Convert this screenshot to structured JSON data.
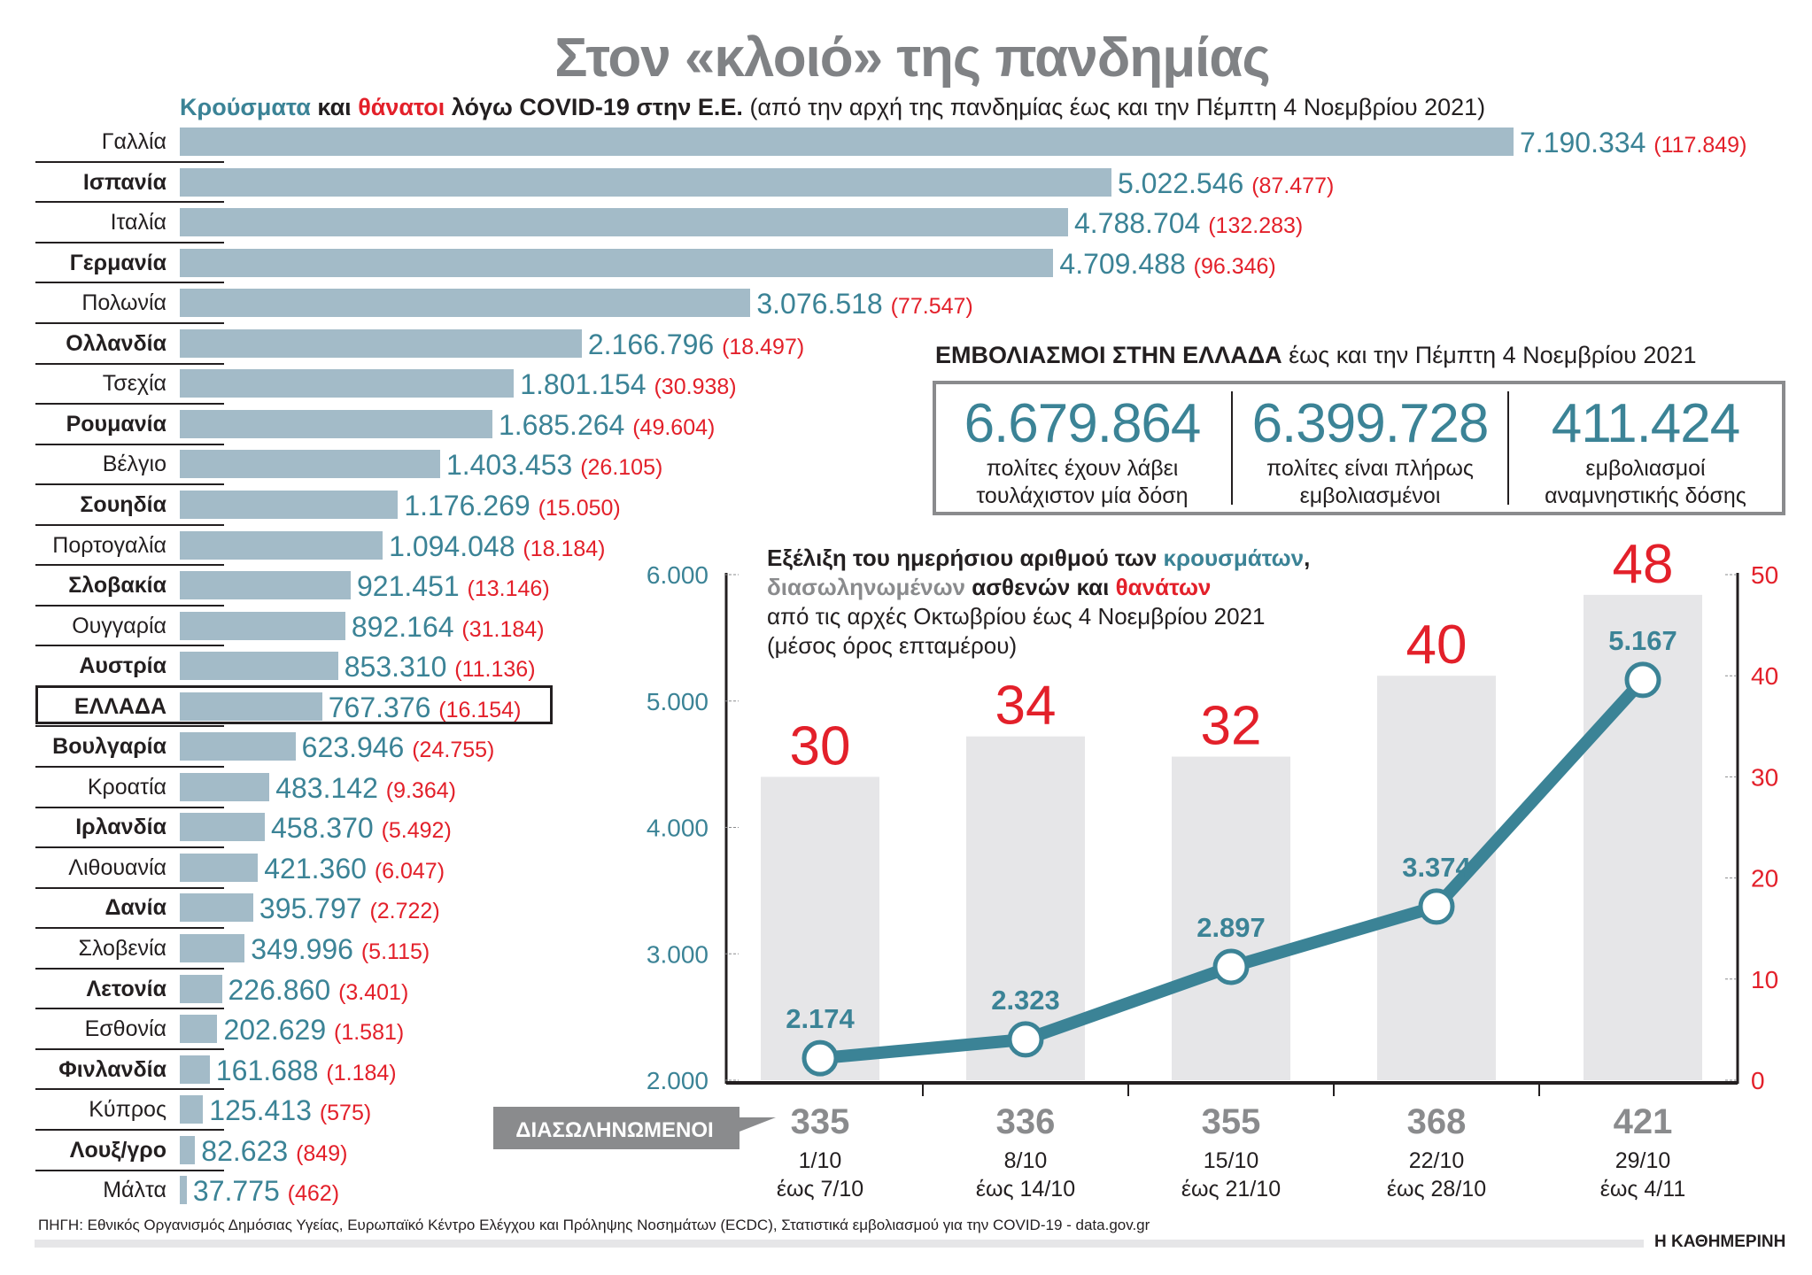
{
  "title": "Στον «κλοιό» της πανδημίας",
  "subtitle": {
    "cases_word": "Κρούσματα",
    "and_word": "και",
    "deaths_word": "θάνατοι",
    "rest_bold": "λόγω COVID-19 στην Ε.Ε.",
    "rest_note": "(από την αρχή της πανδημίας έως και την Πέμπτη 4 Νοεμβρίου 2021)"
  },
  "colors": {
    "cases": "#3b8396",
    "deaths": "#e3202a",
    "bars": "#a3bbc8",
    "hospitalized": "#8a8b8d",
    "death_bars": "#e6e6e8"
  },
  "chart_data": [
    {
      "type": "bar",
      "orientation": "horizontal",
      "categories": [
        "Γαλλία",
        "Ισπανία",
        "Ιταλία",
        "Γερμανία",
        "Πολωνία",
        "Ολλανδία",
        "Τσεχία",
        "Ρουμανία",
        "Βέλγιο",
        "Σουηδία",
        "Πορτογαλία",
        "Σλοβακία",
        "Ουγγαρία",
        "Αυστρία",
        "ΕΛΛΑΔΑ",
        "Βουλγαρία",
        "Κροατία",
        "Ιρλανδία",
        "Λιθουανία",
        "Δανία",
        "Σλοβενία",
        "Λετονία",
        "Εσθονία",
        "Φινλανδία",
        "Κύπρος",
        "Λουξ/γρο",
        "Μάλτα"
      ],
      "series": [
        {
          "name": "Κρούσματα",
          "values": [
            7190334,
            5022546,
            4788704,
            4709488,
            3076518,
            2166796,
            1801154,
            1685264,
            1403453,
            1176269,
            1094048,
            921451,
            892164,
            853310,
            767376,
            623946,
            483142,
            458370,
            421360,
            395797,
            349996,
            226860,
            202629,
            161688,
            125413,
            82623,
            37775
          ],
          "labels": [
            "7.190.334",
            "5.022.546",
            "4.788.704",
            "4.709.488",
            "3.076.518",
            "2.166.796",
            "1.801.154",
            "1.685.264",
            "1.403.453",
            "1.176.269",
            "1.094.048",
            "921.451",
            "892.164",
            "853.310",
            "767.376",
            "623.946",
            "483.142",
            "458.370",
            "421.360",
            "395.797",
            "349.996",
            "226.860",
            "202.629",
            "161.688",
            "125.413",
            "82.623",
            "37.775"
          ]
        },
        {
          "name": "θάνατοι",
          "values": [
            117849,
            87477,
            132283,
            96346,
            77547,
            18497,
            30938,
            49604,
            26105,
            15050,
            18184,
            13146,
            31184,
            11136,
            16154,
            24755,
            9364,
            5492,
            6047,
            2722,
            5115,
            3401,
            1581,
            1184,
            575,
            849,
            462
          ],
          "labels": [
            "(117.849)",
            "(87.477)",
            "(132.283)",
            "(96.346)",
            "(77.547)",
            "(18.497)",
            "(30.938)",
            "(49.604)",
            "(26.105)",
            "(15.050)",
            "(18.184)",
            "(13.146)",
            "(31.184)",
            "(11.136)",
            "(16.154)",
            "(24.755)",
            "(9.364)",
            "(5.492)",
            "(6.047)",
            "(2.722)",
            "(5.115)",
            "(3.401)",
            "(1.581)",
            "(1.184)",
            "(575)",
            "(849)",
            "(462)"
          ]
        }
      ],
      "highlight": "ΕΛΛΑΔΑ"
    },
    {
      "type": "bar+line",
      "title_parts": {
        "l1a": "Εξέλιξη του ημερήσιου αριθμού των",
        "l1b": "κρουσμάτων",
        "l1c": ",",
        "l2a": "διασωληνωμένων",
        "l2b": "ασθενών και",
        "l2c": "θανάτων",
        "l3": "από τις αρχές Οκτωβρίου έως 4 Νοεμβρίου 2021",
        "l4": "(μέσος όρος επταμέρου)"
      },
      "categories": [
        [
          "1/10",
          "έως 7/10"
        ],
        [
          "8/10",
          "έως 14/10"
        ],
        [
          "15/10",
          "έως 21/10"
        ],
        [
          "22/10",
          "έως 28/10"
        ],
        [
          "29/10",
          "έως 4/11"
        ]
      ],
      "cases": {
        "values": [
          2174,
          2323,
          2897,
          3374,
          5167
        ],
        "labels": [
          "2.174",
          "2.323",
          "2.897",
          "3.374",
          "5.167"
        ],
        "axis": "left",
        "ylim": [
          2000,
          6000
        ],
        "ticks": [
          "2.000",
          "3.000",
          "4.000",
          "5.000",
          "6.000"
        ]
      },
      "deaths": {
        "values": [
          30,
          34,
          32,
          40,
          48
        ],
        "labels": [
          "30",
          "34",
          "32",
          "40",
          "48"
        ],
        "axis": "right",
        "ylim": [
          0,
          50
        ],
        "ticks": [
          "0",
          "10",
          "20",
          "30",
          "40",
          "50"
        ]
      },
      "hospitalized": {
        "label": "ΔΙΑΣΩΛΗΝΩΜΕΝΟΙ",
        "values": [
          335,
          336,
          355,
          368,
          421
        ],
        "labels": [
          "335",
          "336",
          "355",
          "368",
          "421"
        ]
      }
    }
  ],
  "vaccination": {
    "heading_bold": "ΕΜΒΟΛΙΑΣΜΟΙ ΣΤΗΝ ΕΛΛΑΔΑ",
    "heading_rest": "έως και την Πέμπτη 4 Νοεμβρίου 2021",
    "items": [
      {
        "value": "6.679.864",
        "line1": "πολίτες έχουν λάβει",
        "line2": "τουλάχιστον μία δόση"
      },
      {
        "value": "6.399.728",
        "line1": "πολίτες είναι πλήρως",
        "line2": "εμβολιασμένοι"
      },
      {
        "value": "411.424",
        "line1": "εμβολιασμοί",
        "line2": "αναμνηστικής δόσης"
      }
    ]
  },
  "footer": {
    "source": "ΠΗΓΗ: Εθνικός Οργανισμός Δημόσιας Υγείας, Ευρωπαϊκό Κέντρο Ελέγχου και Πρόληψης Νοσημάτων (ECDC), Στατιστικά εμβολιασμού για την COVID-19 - data.gov.gr",
    "brand": "Η ΚΑΘΗΜΕΡΙΝΗ"
  }
}
